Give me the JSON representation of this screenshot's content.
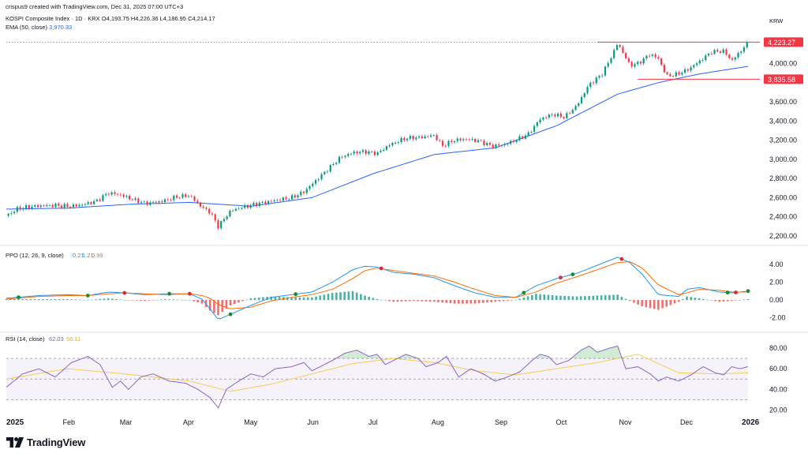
{
  "header": {
    "created_by": "crispus9 created with TradingView.com, Dec 31, 2025 07:00 UTC+3",
    "symbol": "KOSPI Composite Index · 1D · KRX",
    "ohlc": {
      "o_label": "O",
      "o": "4,193.75",
      "h_label": "H",
      "h": "4,226.36",
      "l_label": "L",
      "l": "4,186.95",
      "c_label": "C",
      "c": "4,214.17"
    },
    "ema_label": "EMA (50, close)",
    "ema_value": "3,970.33",
    "currency": "KRW"
  },
  "brand": "TradingView",
  "colors": {
    "up": "#089981",
    "down": "#f23645",
    "ema": "#2962ff",
    "ppo_line": "#2196f3",
    "ppo_signal": "#ff6d00",
    "rsi_line": "#7e57c2",
    "rsi_ma": "#f5c842",
    "level": "#f23645"
  },
  "chart_data": [
    {
      "type": "candlestick",
      "panel": "price",
      "ylim": [
        2150,
        4300
      ],
      "y_ticks": [
        "2,200.00",
        "2,400.00",
        "2,600.00",
        "2,800.00",
        "3,000.00",
        "3,200.00",
        "3,400.00",
        "3,600.00",
        "4,000.00"
      ],
      "y_tick_values": [
        2200,
        2400,
        2600,
        2800,
        3000,
        3200,
        3400,
        3600,
        4000
      ],
      "x_labels": [
        "2025",
        "Feb",
        "Mar",
        "Apr",
        "May",
        "Jun",
        "Jul",
        "Aug",
        "Sep",
        "Oct",
        "Nov",
        "Dec",
        "2026"
      ],
      "x_label_days": [
        0,
        30,
        58,
        89,
        119,
        150,
        180,
        211,
        242,
        272,
        303,
        333,
        364
      ],
      "close_path": [
        [
          0,
          2410
        ],
        [
          6,
          2490
        ],
        [
          14,
          2510
        ],
        [
          24,
          2520
        ],
        [
          30,
          2510
        ],
        [
          36,
          2520
        ],
        [
          44,
          2560
        ],
        [
          50,
          2650
        ],
        [
          56,
          2630
        ],
        [
          62,
          2580
        ],
        [
          68,
          2540
        ],
        [
          76,
          2560
        ],
        [
          84,
          2610
        ],
        [
          90,
          2620
        ],
        [
          96,
          2500
        ],
        [
          100,
          2450
        ],
        [
          104,
          2300
        ],
        [
          110,
          2460
        ],
        [
          116,
          2500
        ],
        [
          124,
          2540
        ],
        [
          132,
          2570
        ],
        [
          140,
          2600
        ],
        [
          146,
          2660
        ],
        [
          152,
          2780
        ],
        [
          158,
          2900
        ],
        [
          164,
          3020
        ],
        [
          170,
          3070
        ],
        [
          176,
          3080
        ],
        [
          182,
          3060
        ],
        [
          188,
          3150
        ],
        [
          196,
          3220
        ],
        [
          204,
          3230
        ],
        [
          210,
          3250
        ],
        [
          214,
          3140
        ],
        [
          220,
          3200
        ],
        [
          226,
          3210
        ],
        [
          232,
          3190
        ],
        [
          238,
          3140
        ],
        [
          244,
          3150
        ],
        [
          250,
          3200
        ],
        [
          256,
          3260
        ],
        [
          262,
          3420
        ],
        [
          268,
          3470
        ],
        [
          274,
          3440
        ],
        [
          280,
          3560
        ],
        [
          286,
          3780
        ],
        [
          292,
          3880
        ],
        [
          296,
          4030
        ],
        [
          300,
          4210
        ],
        [
          303,
          4100
        ],
        [
          306,
          3980
        ],
        [
          310,
          4000
        ],
        [
          316,
          4100
        ],
        [
          320,
          4050
        ],
        [
          324,
          3870
        ],
        [
          328,
          3880
        ],
        [
          334,
          3930
        ],
        [
          340,
          4020
        ],
        [
          346,
          4120
        ],
        [
          352,
          4130
        ],
        [
          356,
          4030
        ],
        [
          360,
          4120
        ],
        [
          364,
          4214
        ]
      ],
      "ema_path": [
        [
          0,
          2480
        ],
        [
          30,
          2490
        ],
        [
          60,
          2530
        ],
        [
          90,
          2550
        ],
        [
          120,
          2510
        ],
        [
          150,
          2600
        ],
        [
          180,
          2850
        ],
        [
          210,
          3050
        ],
        [
          240,
          3120
        ],
        [
          270,
          3350
        ],
        [
          300,
          3680
        ],
        [
          320,
          3800
        ],
        [
          340,
          3890
        ],
        [
          364,
          3970
        ]
      ],
      "levels": [
        {
          "label": "4,223.27",
          "value": 4223.27,
          "from_day": 290
        },
        {
          "label": "3,835.58",
          "value": 3835.58,
          "from_day": 310
        }
      ],
      "dotted_level": 4223.27,
      "ema_name": "EMA (50, close)"
    },
    {
      "type": "line",
      "panel": "ppo",
      "title": "PPO (12, 26, 9, close)",
      "values_shown": [
        "0.21",
        "1.21",
        "0.99"
      ],
      "ylim": [
        -3,
        5.5
      ],
      "y_ticks": [
        "4.00",
        "2.00",
        "0.00",
        "-2.00"
      ],
      "y_tick_values": [
        4,
        2,
        0,
        -2
      ],
      "series": [
        {
          "name": "PPO",
          "values_x": [
            0,
            16,
            30,
            40,
            50,
            58,
            68,
            78,
            90,
            96,
            100,
            104,
            110,
            120,
            130,
            140,
            150,
            160,
            170,
            176,
            182,
            190,
            200,
            210,
            220,
            230,
            240,
            250,
            260,
            270,
            280,
            290,
            300,
            306,
            312,
            320,
            330,
            334,
            340,
            350,
            356,
            364
          ],
          "values": [
            0.2,
            0.5,
            0.6,
            0.5,
            0.9,
            0.8,
            0.6,
            0.7,
            0.7,
            0.1,
            -1.0,
            -2.2,
            -1.6,
            -0.6,
            0.3,
            0.6,
            0.9,
            2.0,
            3.4,
            3.8,
            3.7,
            3.1,
            2.9,
            2.5,
            1.6,
            0.8,
            0.3,
            0.3,
            1.6,
            2.4,
            3.0,
            3.9,
            4.8,
            4.2,
            2.9,
            0.6,
            0.4,
            1.2,
            1.4,
            0.9,
            0.8,
            1.0
          ]
        },
        {
          "name": "Signal",
          "values_x": [
            0,
            16,
            30,
            40,
            50,
            58,
            68,
            78,
            90,
            96,
            100,
            104,
            110,
            120,
            130,
            140,
            150,
            160,
            170,
            176,
            182,
            190,
            200,
            210,
            220,
            230,
            240,
            250,
            260,
            270,
            280,
            290,
            300,
            306,
            312,
            320,
            330,
            334,
            340,
            350,
            356,
            364
          ],
          "values": [
            0.1,
            0.4,
            0.5,
            0.5,
            0.7,
            0.8,
            0.7,
            0.6,
            0.7,
            0.5,
            0.2,
            -0.5,
            -1.0,
            -0.8,
            -0.1,
            0.3,
            0.6,
            1.2,
            2.4,
            3.3,
            3.6,
            3.3,
            3.0,
            2.7,
            2.0,
            1.2,
            0.5,
            0.3,
            0.9,
            1.9,
            2.6,
            3.4,
            4.2,
            4.3,
            3.6,
            1.7,
            0.6,
            0.8,
            1.2,
            1.1,
            0.9,
            0.9
          ]
        }
      ],
      "cross_dots_x": [
        6,
        40,
        58,
        80,
        90,
        110,
        142,
        184,
        254,
        272,
        278,
        302,
        354,
        358,
        364
      ],
      "cross_dots_color": [
        "up",
        "up",
        "down",
        "up",
        "down",
        "up",
        "up",
        "down",
        "up",
        "down",
        "up",
        "down",
        "up",
        "down",
        "up"
      ]
    },
    {
      "type": "line",
      "panel": "rsi",
      "title": "RSI (14, close)",
      "values_shown": [
        "62.03",
        "56.11"
      ],
      "ylim": [
        18,
        90
      ],
      "y_ticks": [
        "80.00",
        "60.00",
        "40.00",
        "20.00"
      ],
      "y_tick_values": [
        80,
        60,
        40,
        20
      ],
      "bands": {
        "upper": 70,
        "lower": 30,
        "middle": 50
      },
      "series": [
        {
          "name": "RSI",
          "values_x": [
            0,
            8,
            16,
            24,
            32,
            40,
            46,
            52,
            56,
            60,
            66,
            72,
            80,
            88,
            94,
            100,
            104,
            108,
            114,
            120,
            126,
            132,
            140,
            146,
            150,
            156,
            160,
            166,
            172,
            178,
            182,
            186,
            190,
            196,
            202,
            206,
            212,
            216,
            222,
            228,
            234,
            240,
            246,
            252,
            258,
            262,
            266,
            270,
            276,
            282,
            286,
            290,
            296,
            300,
            304,
            310,
            316,
            320,
            324,
            330,
            336,
            342,
            348,
            352,
            356,
            360,
            364
          ],
          "values": [
            42,
            55,
            60,
            52,
            66,
            72,
            64,
            42,
            48,
            40,
            52,
            55,
            48,
            46,
            40,
            32,
            22,
            40,
            48,
            55,
            52,
            60,
            62,
            66,
            58,
            64,
            68,
            75,
            78,
            72,
            74,
            64,
            68,
            74,
            70,
            62,
            66,
            72,
            52,
            60,
            55,
            48,
            52,
            57,
            68,
            74,
            72,
            64,
            68,
            78,
            82,
            76,
            80,
            82,
            60,
            62,
            55,
            48,
            52,
            48,
            54,
            62,
            56,
            54,
            62,
            60,
            62
          ]
        },
        {
          "name": "RSI-based MA",
          "values_x": [
            0,
            30,
            58,
            90,
            110,
            130,
            150,
            170,
            190,
            210,
            230,
            250,
            270,
            290,
            310,
            330,
            350,
            364
          ],
          "values": [
            50,
            60,
            55,
            48,
            38,
            45,
            55,
            65,
            70,
            66,
            58,
            54,
            60,
            66,
            74,
            56,
            55,
            56
          ]
        }
      ]
    }
  ]
}
